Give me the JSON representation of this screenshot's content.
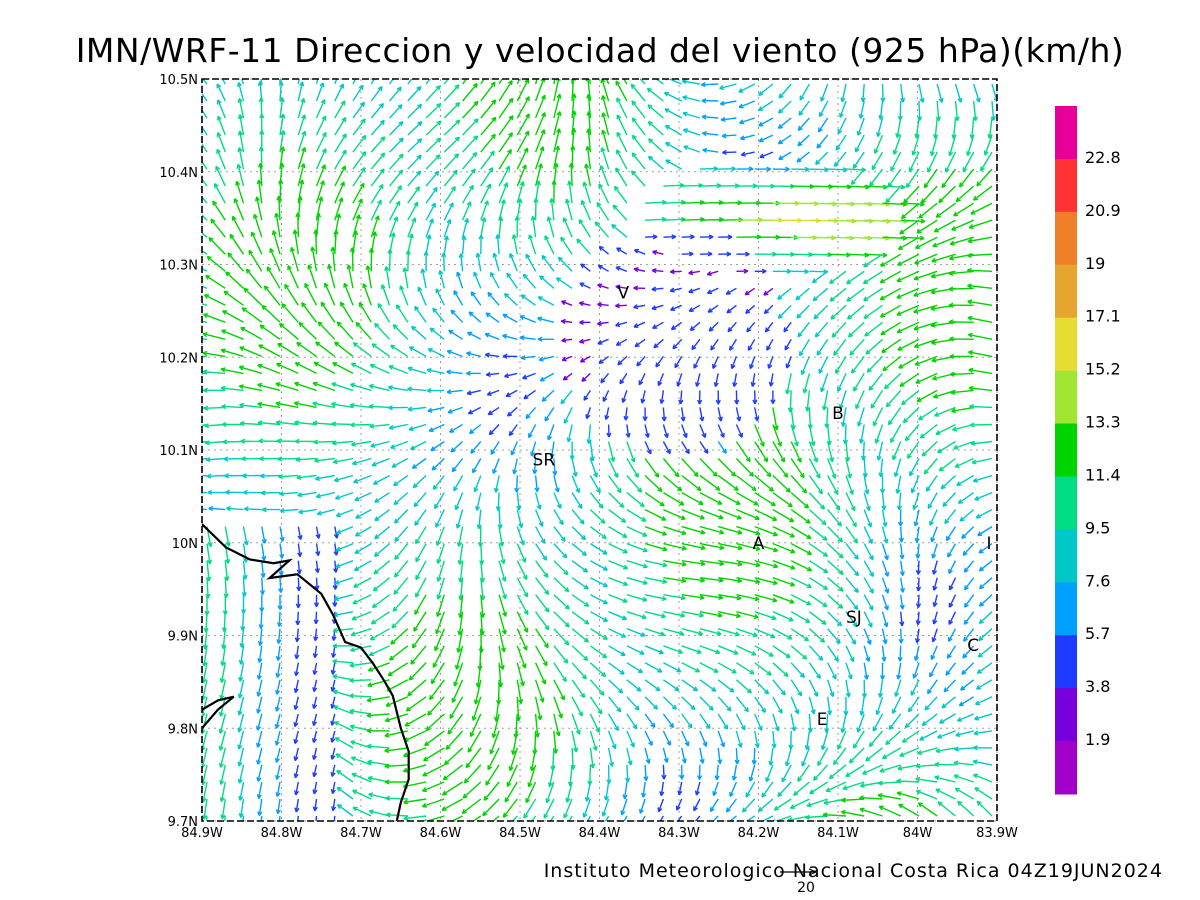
{
  "map": {
    "title": "IMN/WRF-11 Direccion y velocidad del viento (925 hPa)(km/h)",
    "credit": "Instituto Meteorologico Nacional Costa Rica 04Z19JUN2024",
    "reference_vector_label": "20",
    "bounds": {
      "lon_west": -84.9,
      "lon_east": -83.9,
      "lat_south": 9.7,
      "lat_north": 10.5
    },
    "lon_ticks": [
      {
        "value": -84.9,
        "label": "84.9W"
      },
      {
        "value": -84.8,
        "label": "84.8W"
      },
      {
        "value": -84.7,
        "label": "84.7W"
      },
      {
        "value": -84.6,
        "label": "84.6W"
      },
      {
        "value": -84.5,
        "label": "84.5W"
      },
      {
        "value": -84.4,
        "label": "84.4W"
      },
      {
        "value": -84.3,
        "label": "84.3W"
      },
      {
        "value": -84.2,
        "label": "84.2W"
      },
      {
        "value": -84.1,
        "label": "84.1W"
      },
      {
        "value": -84.0,
        "label": "84W"
      },
      {
        "value": -83.9,
        "label": "83.9W"
      }
    ],
    "lat_ticks": [
      {
        "value": 9.7,
        "label": "9.7N"
      },
      {
        "value": 9.8,
        "label": "9.8N"
      },
      {
        "value": 9.9,
        "label": "9.9N"
      },
      {
        "value": 10.0,
        "label": "10N"
      },
      {
        "value": 10.1,
        "label": "10.1N"
      },
      {
        "value": 10.2,
        "label": "10.2N"
      },
      {
        "value": 10.3,
        "label": "10.3N"
      },
      {
        "value": 10.4,
        "label": "10.4N"
      },
      {
        "value": 10.5,
        "label": "10.5N"
      }
    ],
    "grid": true,
    "cities": [
      {
        "label": "V",
        "lon": -84.37,
        "lat": 10.27
      },
      {
        "label": "SR",
        "lon": -84.47,
        "lat": 10.09
      },
      {
        "label": "B",
        "lon": -84.1,
        "lat": 10.14
      },
      {
        "label": "A",
        "lon": -84.2,
        "lat": 10.0
      },
      {
        "label": "SJ",
        "lon": -84.08,
        "lat": 9.92
      },
      {
        "label": "C",
        "lon": -83.93,
        "lat": 9.89
      },
      {
        "label": "E",
        "lon": -84.12,
        "lat": 9.81
      },
      {
        "label": "I",
        "lon": -83.91,
        "lat": 10.0
      }
    ],
    "coastline": [
      [
        -84.9,
        10.02
      ],
      [
        -84.87,
        9.995
      ],
      [
        -84.84,
        9.982
      ],
      [
        -84.81,
        9.978
      ],
      [
        -84.79,
        9.981
      ],
      [
        -84.815,
        9.962
      ],
      [
        -84.78,
        9.966
      ],
      [
        -84.75,
        9.945
      ],
      [
        -84.735,
        9.922
      ],
      [
        -84.72,
        9.893
      ],
      [
        -84.7,
        9.887
      ],
      [
        -84.685,
        9.87
      ],
      [
        -84.67,
        9.85
      ],
      [
        -84.66,
        9.835
      ],
      [
        -84.65,
        9.8
      ],
      [
        -84.64,
        9.775
      ],
      [
        -84.64,
        9.745
      ],
      [
        -84.65,
        9.72
      ],
      [
        -84.655,
        9.7
      ]
    ],
    "island": [
      [
        -84.9,
        9.82
      ],
      [
        -84.88,
        9.83
      ],
      [
        -84.86,
        9.834
      ],
      [
        -84.88,
        9.82
      ],
      [
        -84.9,
        9.8
      ]
    ]
  },
  "colorbar": {
    "levels": [
      {
        "label": "",
        "color": "#e60099"
      },
      {
        "label": "22.8",
        "color": "#ff3333"
      },
      {
        "label": "20.9",
        "color": "#f07f2a"
      },
      {
        "label": "19",
        "color": "#e6a52e"
      },
      {
        "label": "17.1",
        "color": "#e6dc32"
      },
      {
        "label": "15.2",
        "color": "#a0e632"
      },
      {
        "label": "13.3",
        "color": "#00d400"
      },
      {
        "label": "11.4",
        "color": "#00dc82"
      },
      {
        "label": "9.5",
        "color": "#00c8c8"
      },
      {
        "label": "7.6",
        "color": "#00a0ff"
      },
      {
        "label": "5.7",
        "color": "#1e3cff"
      },
      {
        "label": "3.8",
        "color": "#7800dc"
      },
      {
        "label": "1.9",
        "color": "#a000c8"
      }
    ]
  }
}
